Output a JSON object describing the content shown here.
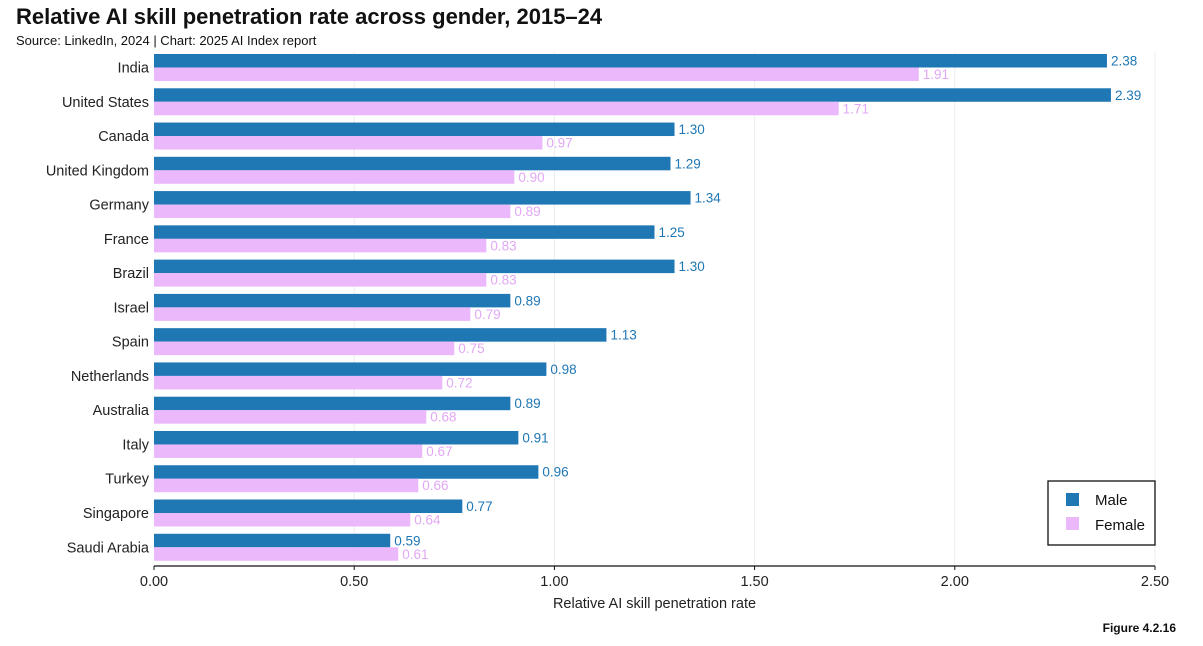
{
  "header": {
    "title": "Relative AI skill penetration rate across gender, 2015–24",
    "subtitle": "Source: LinkedIn, 2024 | Chart: 2025 AI Index report"
  },
  "figure_label": "Figure 4.2.16",
  "colors": {
    "male": "#1f77b4",
    "female": "#ebb8fb",
    "female_text": "#e2a8f5",
    "grid": "#ececec"
  },
  "chart_data": {
    "type": "bar",
    "orientation": "horizontal",
    "categories": [
      "India",
      "United States",
      "Canada",
      "United Kingdom",
      "Germany",
      "France",
      "Brazil",
      "Israel",
      "Spain",
      "Netherlands",
      "Australia",
      "Italy",
      "Turkey",
      "Singapore",
      "Saudi Arabia"
    ],
    "series": [
      {
        "name": "Male",
        "values": [
          2.38,
          2.39,
          1.3,
          1.29,
          1.34,
          1.25,
          1.3,
          0.89,
          1.13,
          0.98,
          0.89,
          0.91,
          0.96,
          0.77,
          0.59
        ]
      },
      {
        "name": "Female",
        "values": [
          1.91,
          1.71,
          0.97,
          0.9,
          0.89,
          0.83,
          0.83,
          0.79,
          0.75,
          0.72,
          0.68,
          0.67,
          0.66,
          0.64,
          0.61
        ]
      }
    ],
    "xlabel": "Relative AI skill penetration rate",
    "xlim": [
      0,
      2.5
    ],
    "xticks": [
      "0.00",
      "0.50",
      "1.00",
      "1.50",
      "2.00",
      "2.50"
    ],
    "grid": "vertical",
    "legend_position": "bottom-right"
  }
}
